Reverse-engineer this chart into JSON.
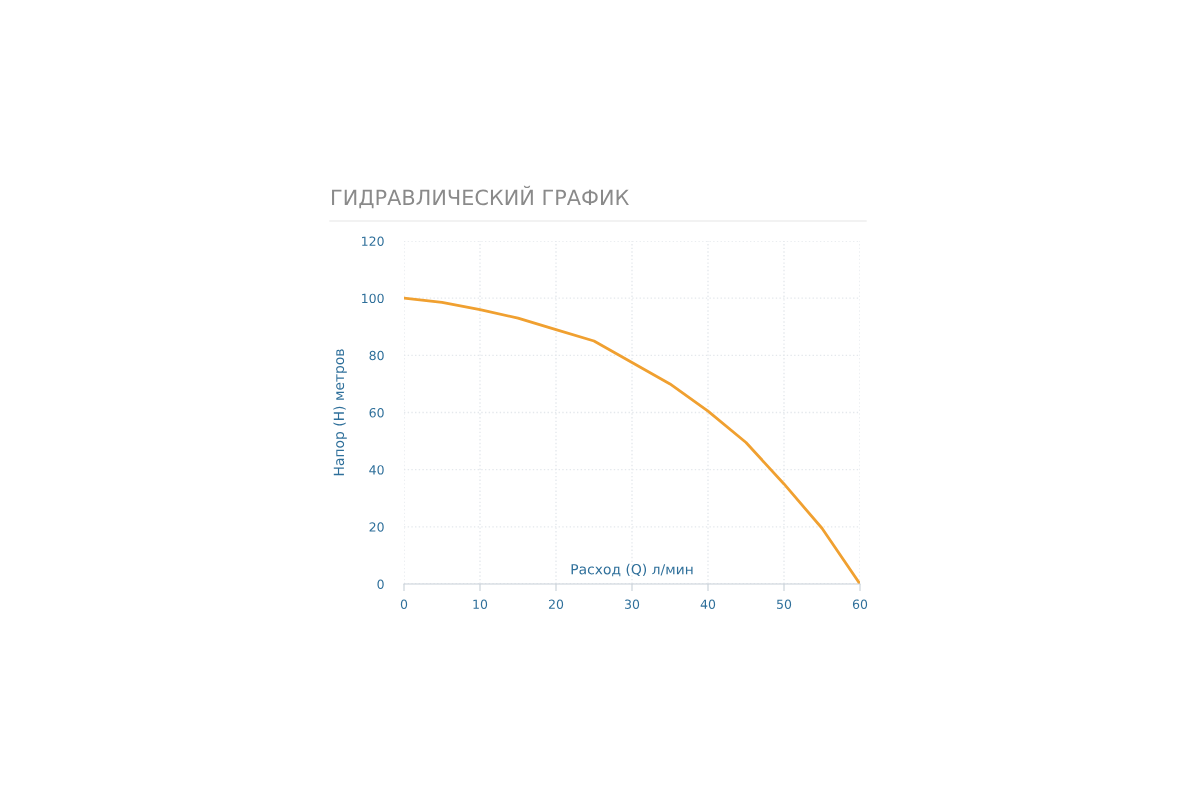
{
  "chart_data": {
    "type": "line",
    "title": "ГИДРАВЛИЧЕСКИЙ ГРАФИК",
    "xlabel": "Расход (Q) л/мин",
    "ylabel": "Напор (H) метров",
    "x": [
      0,
      5,
      10,
      15,
      20,
      25,
      30,
      35,
      40,
      45,
      50,
      55,
      60
    ],
    "series": [
      {
        "color": "#f0a030",
        "values": [
          100,
          98.5,
          96,
          93,
          89,
          85,
          77.5,
          70,
          60.5,
          49.5,
          35,
          19.5,
          0
        ]
      }
    ],
    "xlim": [
      0,
      60
    ],
    "xticks": [
      0,
      10,
      20,
      30,
      40,
      50,
      60
    ],
    "ylim": [
      0,
      120
    ],
    "yticks": [
      0,
      20,
      40,
      60,
      80,
      100,
      120
    ],
    "grid": true,
    "marker": "none",
    "line_style": "solid"
  }
}
